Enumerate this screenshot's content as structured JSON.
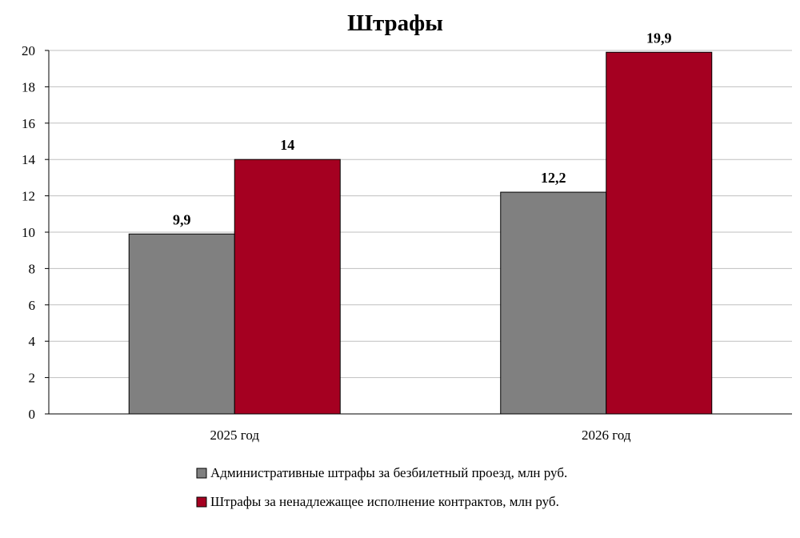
{
  "chart_data": {
    "type": "bar",
    "title": "Штрафы",
    "categories": [
      "2025 год",
      "2026 год"
    ],
    "series": [
      {
        "name": "Административные штрафы за безбилетный проезд, млн руб.",
        "values": [
          9.9,
          12.2
        ],
        "labels": [
          "9,9",
          "12,2"
        ],
        "color": "#808080"
      },
      {
        "name": "Штрафы за ненадлежащее исполнение контрактов, млн руб.",
        "values": [
          14,
          19.9
        ],
        "labels": [
          "14",
          "19,9"
        ],
        "color": "#A50021"
      }
    ],
    "xlabel": "",
    "ylabel": "",
    "ylim": [
      0,
      20
    ],
    "yticks": [
      "0",
      "2",
      "4",
      "6",
      "8",
      "10",
      "12",
      "14",
      "16",
      "18",
      "20"
    ],
    "grid": true,
    "legend_position": "bottom"
  }
}
